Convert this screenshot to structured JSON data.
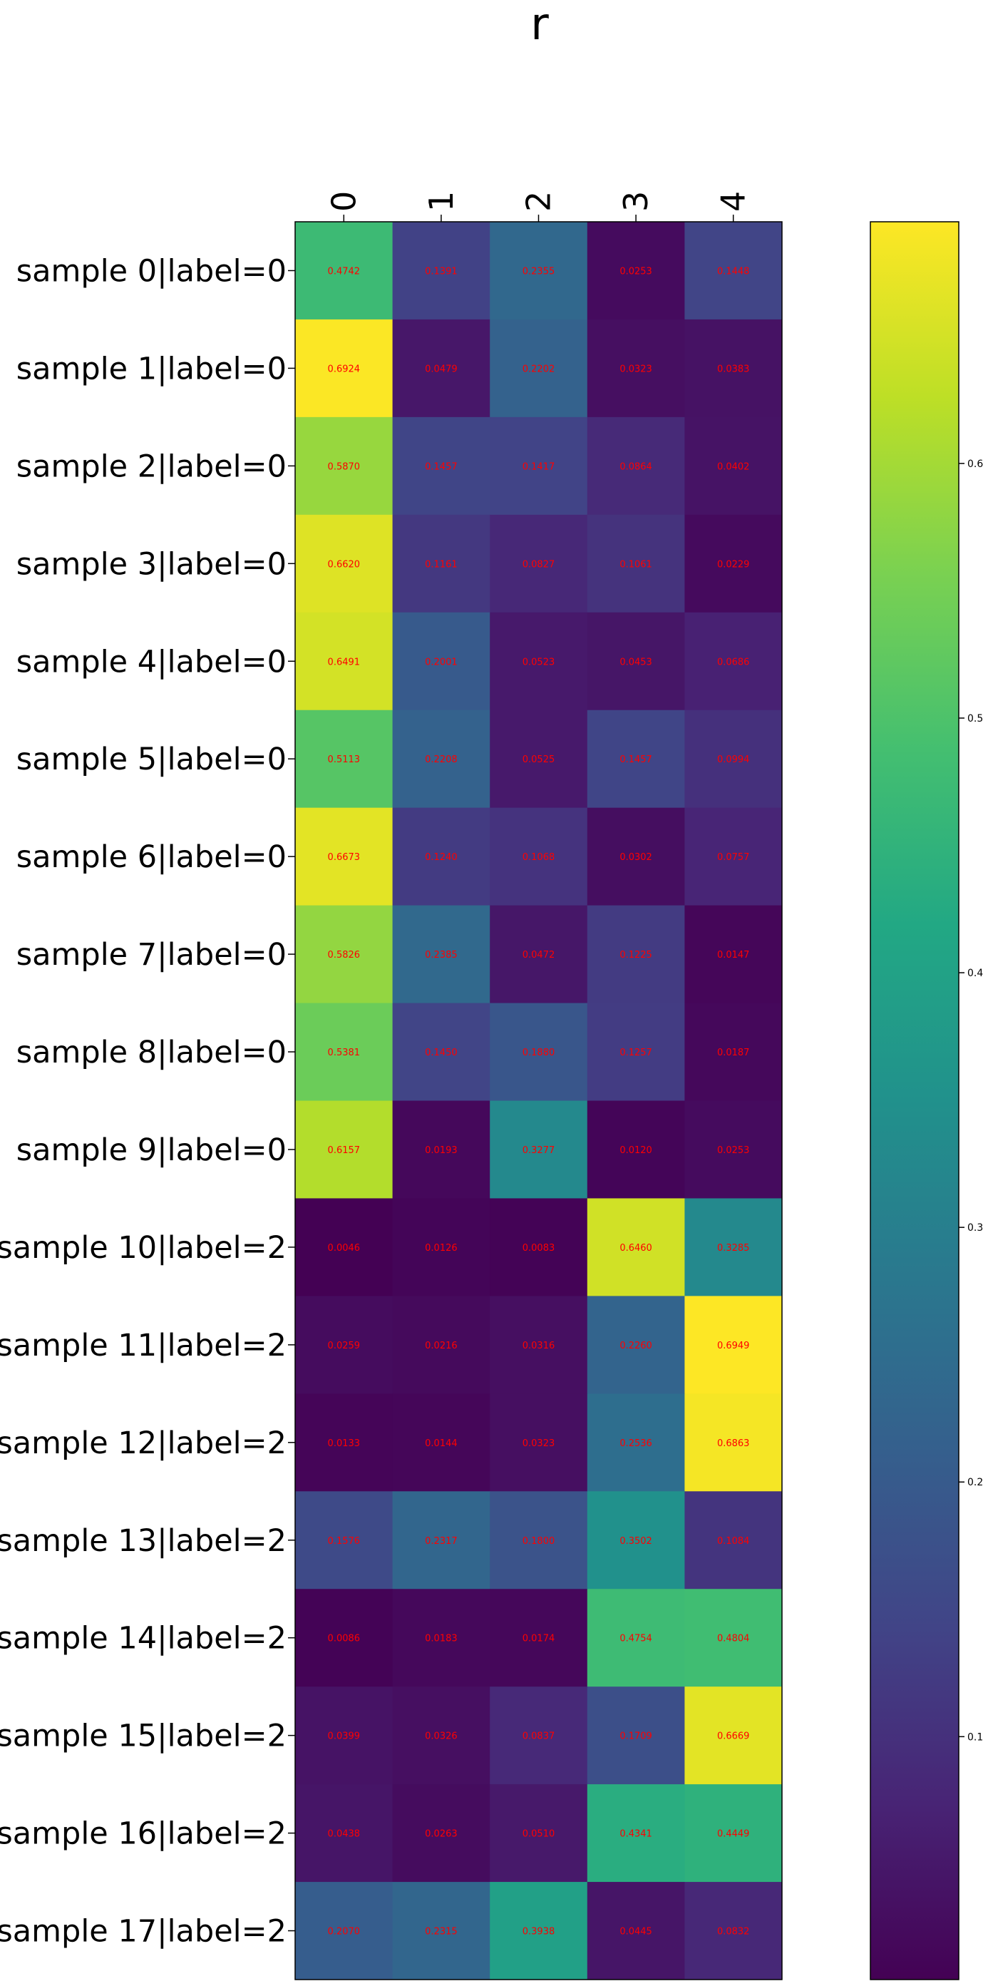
{
  "chart_data": {
    "type": "heatmap",
    "title": "r",
    "columns": [
      "0",
      "1",
      "2",
      "3",
      "4"
    ],
    "rows": [
      "sample 0|label=0",
      "sample 1|label=0",
      "sample 2|label=0",
      "sample 3|label=0",
      "sample 4|label=0",
      "sample 5|label=0",
      "sample 6|label=0",
      "sample 7|label=0",
      "sample 8|label=0",
      "sample 9|label=0",
      "sample 10|label=2",
      "sample 11|label=2",
      "sample 12|label=2",
      "sample 13|label=2",
      "sample 14|label=2",
      "sample 15|label=2",
      "sample 16|label=2",
      "sample 17|label=2"
    ],
    "values": [
      [
        "0.4742",
        "0.1391",
        "0.2355",
        "0.0253",
        "0.1448"
      ],
      [
        "0.6924",
        "0.0479",
        "0.2202",
        "0.0323",
        "0.0383"
      ],
      [
        "0.5870",
        "0.1457",
        "0.1417",
        "0.0864",
        "0.0402"
      ],
      [
        "0.6620",
        "0.1161",
        "0.0827",
        "0.1061",
        "0.0229"
      ],
      [
        "0.6491",
        "0.2001",
        "0.0523",
        "0.0453",
        "0.0686"
      ],
      [
        "0.5113",
        "0.2208",
        "0.0525",
        "0.1457",
        "0.0994"
      ],
      [
        "0.6673",
        "0.1240",
        "0.1068",
        "0.0302",
        "0.0757"
      ],
      [
        "0.5826",
        "0.2385",
        "0.0472",
        "0.1225",
        "0.0147"
      ],
      [
        "0.5381",
        "0.1450",
        "0.1880",
        "0.1257",
        "0.0187"
      ],
      [
        "0.6157",
        "0.0193",
        "0.3277",
        "0.0120",
        "0.0253"
      ],
      [
        "0.0046",
        "0.0126",
        "0.0083",
        "0.6460",
        "0.3285"
      ],
      [
        "0.0259",
        "0.0216",
        "0.0316",
        "0.2260",
        "0.6949"
      ],
      [
        "0.0133",
        "0.0144",
        "0.0323",
        "0.2536",
        "0.6863"
      ],
      [
        "0.1576",
        "0.2317",
        "0.1800",
        "0.3502",
        "0.1084"
      ],
      [
        "0.0086",
        "0.0183",
        "0.0174",
        "0.4754",
        "0.4804"
      ],
      [
        "0.0399",
        "0.0326",
        "0.0837",
        "0.1709",
        "0.6669"
      ],
      [
        "0.0438",
        "0.0263",
        "0.0510",
        "0.4341",
        "0.4449"
      ],
      [
        "0.2070",
        "0.2315",
        "0.3938",
        "0.0445",
        "0.0832"
      ]
    ],
    "cell_text_color": "#ff0000",
    "colorbar": {
      "colormap": "viridis",
      "range": [
        0.0046,
        0.6949
      ],
      "ticks": [
        "0.1",
        "0.2",
        "0.3",
        "0.4",
        "0.5",
        "0.6"
      ]
    }
  }
}
